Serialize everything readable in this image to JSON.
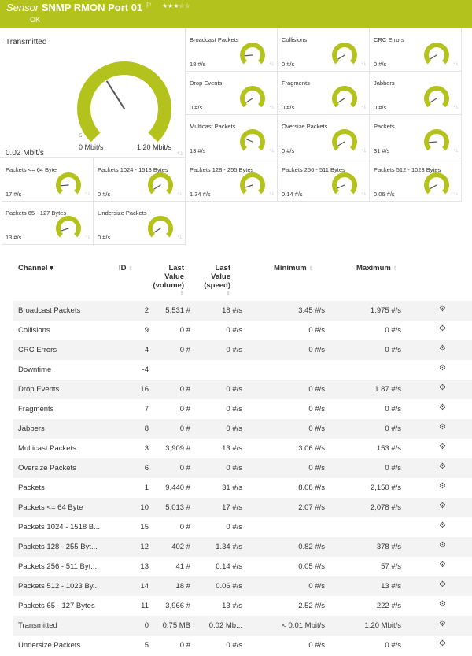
{
  "header": {
    "kind": "Sensor",
    "name": "SNMP RMON Port 01",
    "stars": "★★★☆☆",
    "status": "OK"
  },
  "colors": {
    "accent": "#b4c21d",
    "needle": "#555555"
  },
  "big_gauge": {
    "label": "Transmitted",
    "value": "0.02 Mbit/s",
    "min": "0 Mbit/s",
    "max": "1.20 Mbit/s",
    "tick": "5",
    "fraction": 0.38
  },
  "gauges": [
    {
      "label": "Broadcast Packets",
      "value": "18 #/s",
      "fraction": 0.15
    },
    {
      "label": "Collisions",
      "value": "0 #/s",
      "fraction": 0.05
    },
    {
      "label": "CRC Errors",
      "value": "0 #/s",
      "fraction": 0.05
    },
    {
      "label": "Drop Events",
      "value": "0 #/s",
      "fraction": 0.05
    },
    {
      "label": "Fragments",
      "value": "0 #/s",
      "fraction": 0.05
    },
    {
      "label": "Jabbers",
      "value": "0 #/s",
      "fraction": 0.05
    },
    {
      "label": "Multicast Packets",
      "value": "13 #/s",
      "fraction": 0.25
    },
    {
      "label": "Oversize Packets",
      "value": "0 #/s",
      "fraction": 0.05
    },
    {
      "label": "Packets",
      "value": "31 #/s",
      "fraction": 0.15
    },
    {
      "label": "Packets <= 64 Byte",
      "value": "17 #/s",
      "fraction": 0.15
    },
    {
      "label": "Packets 1024 - 1518 Bytes",
      "value": "0 #/s",
      "fraction": 0.05
    },
    {
      "label": "Packets 128 - 255 Bytes",
      "value": "1.34 #/s",
      "fraction": 0.1
    },
    {
      "label": "Packets 256 - 511 Bytes",
      "value": "0.14 #/s",
      "fraction": 0.08
    },
    {
      "label": "Packets 512 - 1023 Bytes",
      "value": "0.06 #/s",
      "fraction": 0.06
    },
    {
      "label": "Packets 65 - 127 Bytes",
      "value": "13 #/s",
      "fraction": 0.1
    },
    {
      "label": "Undersize Packets",
      "value": "0 #/s",
      "fraction": 0.05
    }
  ],
  "table": {
    "headers": {
      "channel": "Channel",
      "id": "ID",
      "last_volume": [
        "Last",
        "Value",
        "(volume)"
      ],
      "last_speed": [
        "Last",
        "Value",
        "(speed)"
      ],
      "minimum": "Minimum",
      "maximum": "Maximum"
    },
    "rows": [
      {
        "channel": "Broadcast Packets",
        "id": "2",
        "volume": "5,531 #",
        "speed": "18 #/s",
        "min": "3.45 #/s",
        "max": "1,975 #/s"
      },
      {
        "channel": "Collisions",
        "id": "9",
        "volume": "0 #",
        "speed": "0 #/s",
        "min": "0 #/s",
        "max": "0 #/s"
      },
      {
        "channel": "CRC Errors",
        "id": "4",
        "volume": "0 #",
        "speed": "0 #/s",
        "min": "0 #/s",
        "max": "0 #/s"
      },
      {
        "channel": "Downtime",
        "id": "-4",
        "volume": "",
        "speed": "",
        "min": "",
        "max": ""
      },
      {
        "channel": "Drop Events",
        "id": "16",
        "volume": "0 #",
        "speed": "0 #/s",
        "min": "0 #/s",
        "max": "1.87 #/s"
      },
      {
        "channel": "Fragments",
        "id": "7",
        "volume": "0 #",
        "speed": "0 #/s",
        "min": "0 #/s",
        "max": "0 #/s"
      },
      {
        "channel": "Jabbers",
        "id": "8",
        "volume": "0 #",
        "speed": "0 #/s",
        "min": "0 #/s",
        "max": "0 #/s"
      },
      {
        "channel": "Multicast Packets",
        "id": "3",
        "volume": "3,909 #",
        "speed": "13 #/s",
        "min": "3.06 #/s",
        "max": "153 #/s"
      },
      {
        "channel": "Oversize Packets",
        "id": "6",
        "volume": "0 #",
        "speed": "0 #/s",
        "min": "0 #/s",
        "max": "0 #/s"
      },
      {
        "channel": "Packets",
        "id": "1",
        "volume": "9,440 #",
        "speed": "31 #/s",
        "min": "8.08 #/s",
        "max": "2,150 #/s"
      },
      {
        "channel": "Packets <= 64 Byte",
        "id": "10",
        "volume": "5,013 #",
        "speed": "17 #/s",
        "min": "2.07 #/s",
        "max": "2,078 #/s"
      },
      {
        "channel": "Packets 1024 - 1518 B...",
        "id": "15",
        "volume": "0 #",
        "speed": "0 #/s",
        "min": "",
        "max": ""
      },
      {
        "channel": "Packets 128 - 255 Byt...",
        "id": "12",
        "volume": "402 #",
        "speed": "1.34 #/s",
        "min": "0.82 #/s",
        "max": "378 #/s"
      },
      {
        "channel": "Packets 256 - 511 Byt...",
        "id": "13",
        "volume": "41 #",
        "speed": "0.14 #/s",
        "min": "0.05 #/s",
        "max": "57 #/s"
      },
      {
        "channel": "Packets 512 - 1023 By...",
        "id": "14",
        "volume": "18 #",
        "speed": "0.06 #/s",
        "min": "0 #/s",
        "max": "13 #/s"
      },
      {
        "channel": "Packets 65 - 127 Bytes",
        "id": "11",
        "volume": "3,966 #",
        "speed": "13 #/s",
        "min": "2.52 #/s",
        "max": "222 #/s"
      },
      {
        "channel": "Transmitted",
        "id": "0",
        "volume": "0.75 MB",
        "speed": "0.02 Mb...",
        "min": "< 0.01 Mbit/s",
        "max": "1.20 Mbit/s"
      },
      {
        "channel": "Undersize Packets",
        "id": "5",
        "volume": "0 #",
        "speed": "0 #/s",
        "min": "0 #/s",
        "max": "0 #/s"
      }
    ]
  }
}
